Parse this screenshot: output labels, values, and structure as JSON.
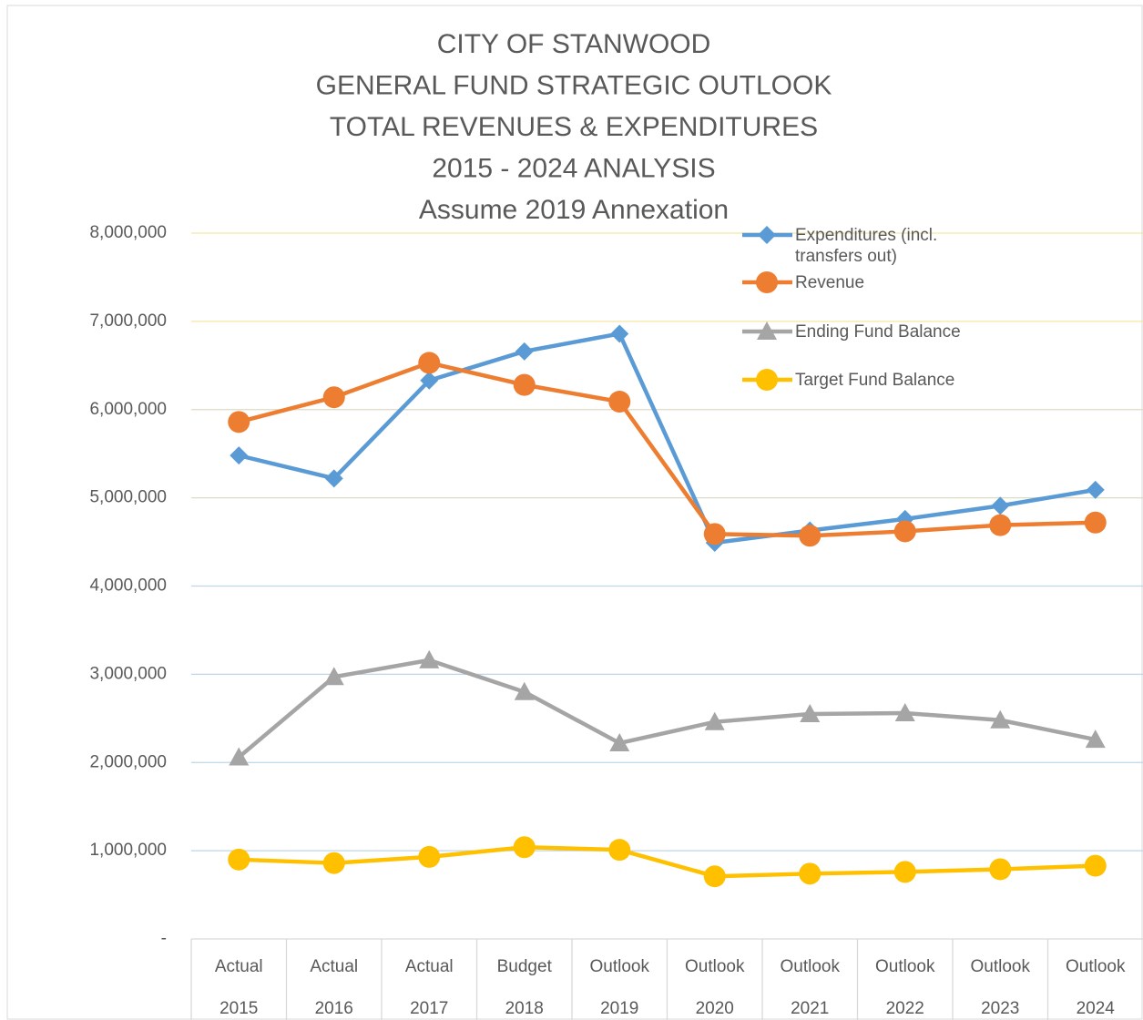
{
  "chart_data": {
    "type": "line",
    "title": [
      "CITY OF STANWOOD",
      "GENERAL FUND STRATEGIC OUTLOOK",
      "TOTAL REVENUES & EXPENDITURES",
      "2015 - 2024 ANALYSIS",
      "Assume 2019 Annexation"
    ],
    "categories": [
      [
        "Actual",
        "2015"
      ],
      [
        "Actual",
        "2016"
      ],
      [
        "Actual",
        "2017"
      ],
      [
        "Budget",
        "2018"
      ],
      [
        "Outlook",
        "2019"
      ],
      [
        "Outlook",
        "2020"
      ],
      [
        "Outlook",
        "2021"
      ],
      [
        "Outlook",
        "2022"
      ],
      [
        "Outlook",
        "2023"
      ],
      [
        "Outlook",
        "2024"
      ]
    ],
    "series": [
      {
        "name": "Expenditures (incl. transfers out)",
        "color": "#5b9bd5",
        "marker": "diamond",
        "values": [
          5480000,
          5220000,
          6330000,
          6660000,
          6860000,
          4490000,
          4630000,
          4760000,
          4910000,
          5090000
        ]
      },
      {
        "name": "Revenue",
        "color": "#ed7d31",
        "marker": "circle",
        "values": [
          5860000,
          6140000,
          6530000,
          6280000,
          6090000,
          4590000,
          4570000,
          4620000,
          4690000,
          4720000
        ]
      },
      {
        "name": "Ending Fund Balance",
        "color": "#a5a5a5",
        "marker": "triangle",
        "values": [
          2060000,
          2970000,
          3160000,
          2800000,
          2220000,
          2460000,
          2550000,
          2560000,
          2480000,
          2260000
        ]
      },
      {
        "name": "Target Fund Balance",
        "color": "#ffc000",
        "marker": "circle",
        "values": [
          900000,
          860000,
          930000,
          1040000,
          1010000,
          710000,
          740000,
          760000,
          790000,
          830000
        ]
      }
    ],
    "ylim": [
      0,
      8000000
    ],
    "yticks": [
      {
        "value": 0,
        "label": "-"
      },
      {
        "value": 1000000,
        "label": "1,000,000"
      },
      {
        "value": 2000000,
        "label": "2,000,000"
      },
      {
        "value": 3000000,
        "label": "3,000,000"
      },
      {
        "value": 4000000,
        "label": "4,000,000"
      },
      {
        "value": 5000000,
        "label": "5,000,000"
      },
      {
        "value": 6000000,
        "label": "6,000,000"
      },
      {
        "value": 7000000,
        "label": "7,000,000"
      },
      {
        "value": 8000000,
        "label": "8,000,000"
      }
    ],
    "grid": true,
    "legend": "top-right"
  }
}
